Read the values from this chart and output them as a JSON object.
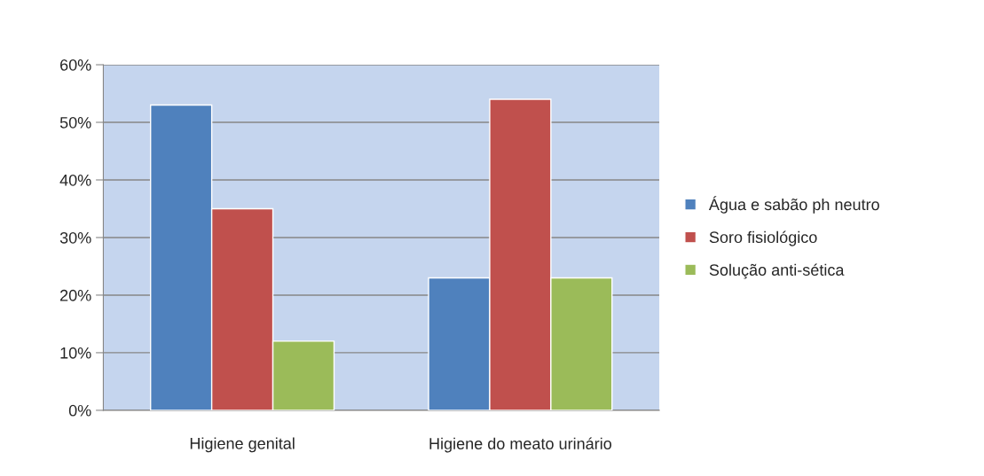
{
  "chart_data": {
    "type": "bar",
    "categories": [
      "Higiene genital",
      "Higiene do meato urinário"
    ],
    "series": [
      {
        "name": "Água e sabão ph neutro",
        "color": "#4f81bd",
        "values": [
          53,
          23
        ]
      },
      {
        "name": "Soro fisiológico",
        "color": "#c0504d",
        "values": [
          35,
          54
        ]
      },
      {
        "name": "Solução anti-sética",
        "color": "#9bbb59",
        "values": [
          12,
          23
        ]
      }
    ],
    "ylim": [
      0,
      60
    ],
    "yticks": [
      {
        "value": 0,
        "label": "0%"
      },
      {
        "value": 10,
        "label": "10%"
      },
      {
        "value": 20,
        "label": "20%"
      },
      {
        "value": 30,
        "label": "30%"
      },
      {
        "value": 40,
        "label": "40%"
      },
      {
        "value": 50,
        "label": "50%"
      },
      {
        "value": 60,
        "label": "60%"
      }
    ],
    "grid": "y",
    "legend": "right"
  }
}
